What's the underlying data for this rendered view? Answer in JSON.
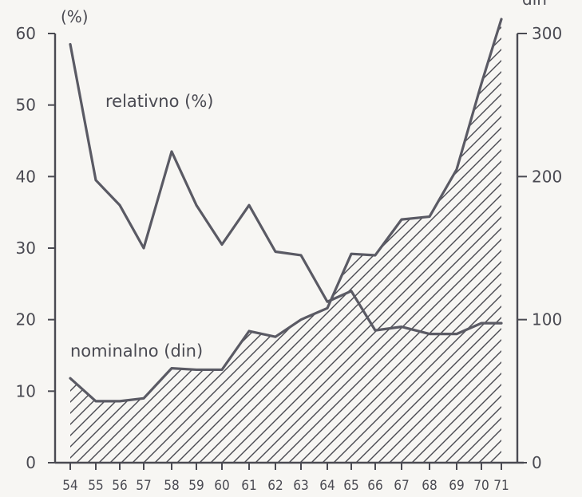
{
  "chart_data": {
    "type": "line",
    "left_axis_unit": "(%)",
    "right_axis_unit": "din",
    "ylim_left": [
      0,
      60
    ],
    "ylim_right": [
      0,
      300
    ],
    "yticks_left": [
      "0",
      "10",
      "20",
      "30",
      "40",
      "50",
      "60"
    ],
    "yticks_right": [
      "0",
      "100",
      "200",
      "300"
    ],
    "x_ticks": [
      "54",
      "55",
      "56",
      "57",
      "58",
      "59",
      "60",
      "61",
      "62",
      "63",
      "64",
      "65",
      "66",
      "67",
      "68",
      "69",
      "70",
      "71"
    ],
    "x": [
      54,
      55,
      56,
      57,
      58,
      59,
      60,
      61,
      62,
      63,
      64,
      65,
      66,
      67,
      68,
      69,
      70,
      71
    ],
    "series": [
      {
        "name": "relativno (%)",
        "axis": "left",
        "style": "line",
        "values": [
          58.5,
          39.5,
          36,
          30,
          43.5,
          36,
          30.5,
          36,
          29.5,
          29,
          22.5,
          24,
          18.5,
          19,
          18,
          18,
          19.5,
          19.5
        ]
      },
      {
        "name": "nominalno (din)",
        "axis": "right",
        "style": "hatched-area",
        "values": [
          59,
          43,
          43,
          45,
          66,
          65,
          65,
          92,
          88,
          100,
          108,
          146,
          145,
          170,
          172,
          205,
          265,
          310
        ]
      }
    ]
  }
}
